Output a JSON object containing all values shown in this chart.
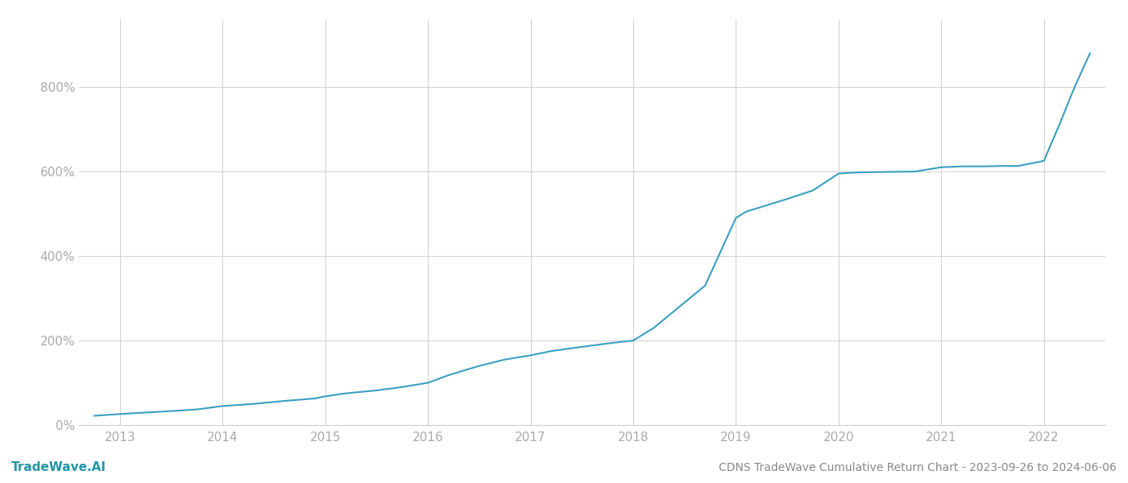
{
  "title": "CDNS TradeWave Cumulative Return Chart - 2023-09-26 to 2024-06-06",
  "watermark": "TradeWave.AI",
  "line_color": "#3a9fc0",
  "background_color": "#ffffff",
  "grid_color": "#d0d0d0",
  "x_years": [
    2013,
    2014,
    2015,
    2016,
    2017,
    2018,
    2019,
    2020,
    2021,
    2022
  ],
  "data_x": [
    2012.75,
    2013.0,
    2013.2,
    2013.5,
    2013.75,
    2014.0,
    2014.3,
    2014.6,
    2014.9,
    2015.0,
    2015.2,
    2015.5,
    2015.75,
    2016.0,
    2016.2,
    2016.5,
    2016.75,
    2017.0,
    2017.2,
    2017.5,
    2017.75,
    2018.0,
    2018.2,
    2018.5,
    2018.7,
    2019.0,
    2019.1,
    2019.3,
    2019.5,
    2019.75,
    2020.0,
    2020.2,
    2020.5,
    2020.75,
    2021.0,
    2021.2,
    2021.4,
    2021.6,
    2021.75,
    2022.0,
    2022.15,
    2022.3,
    2022.45
  ],
  "data_y": [
    22,
    26,
    29,
    33,
    37,
    45,
    50,
    57,
    63,
    68,
    75,
    82,
    90,
    100,
    118,
    140,
    155,
    165,
    175,
    185,
    193,
    200,
    230,
    290,
    330,
    490,
    505,
    520,
    535,
    555,
    595,
    598,
    599,
    600,
    610,
    612,
    612,
    613,
    613,
    625,
    710,
    800,
    880
  ],
  "ylim": [
    0,
    960
  ],
  "yticks": [
    0,
    200,
    400,
    600,
    800
  ],
  "xlim": [
    2012.6,
    2022.6
  ],
  "xlabel_color": "#aaaaaa",
  "ylabel_color": "#aaaaaa",
  "title_color": "#888888",
  "watermark_color": "#2196a6",
  "line_width": 1.5,
  "font_size_title": 10,
  "font_size_ticks": 11,
  "font_size_watermark": 11
}
